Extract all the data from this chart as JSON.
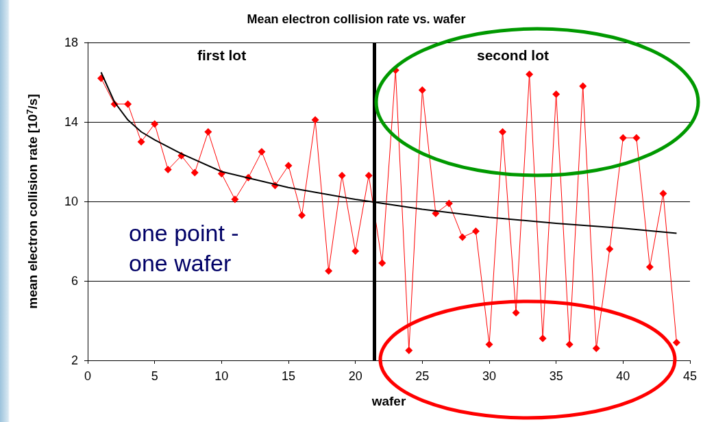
{
  "chart_data": {
    "type": "line",
    "title": "Mean electron collision rate vs. wafer",
    "xlabel": "wafer",
    "ylabel": "mean electron collision rate [10$^{7}$/s]",
    "xlim": [
      0,
      45
    ],
    "xticks": [
      0,
      5,
      10,
      15,
      20,
      25,
      30,
      35,
      40,
      45
    ],
    "ylim": [
      2,
      18
    ],
    "yticks": [
      2,
      6,
      10,
      14,
      18
    ],
    "grid": "y",
    "marker": "diamond",
    "series": [
      {
        "color": "#ff0000",
        "x": [
          1,
          2,
          3,
          4,
          5,
          6,
          7,
          8,
          9,
          10,
          11,
          12,
          13,
          14,
          15,
          16,
          17,
          18,
          19,
          20,
          21,
          22,
          23,
          24,
          25,
          26,
          27,
          28,
          29,
          30,
          31,
          32,
          33,
          34,
          35,
          36,
          37,
          38,
          39,
          40,
          41,
          42,
          43,
          44
        ],
        "values": [
          16.2,
          14.9,
          14.9,
          13.0,
          13.9,
          11.6,
          12.3,
          11.45,
          13.5,
          11.4,
          10.1,
          11.2,
          12.5,
          10.8,
          11.8,
          9.3,
          14.1,
          6.5,
          11.3,
          7.5,
          11.3,
          6.9,
          16.6,
          2.5,
          15.6,
          9.4,
          9.9,
          8.2,
          8.5,
          2.8,
          13.5,
          4.4,
          16.4,
          3.1,
          15.4,
          2.8,
          15.8,
          2.6,
          7.6,
          13.2,
          13.2,
          6.7,
          10.4,
          2.9
        ]
      },
      {
        "color": "#000000",
        "marker": "none",
        "x": [
          1,
          2,
          3,
          4,
          5,
          7,
          10,
          15,
          20,
          25,
          30,
          35,
          40,
          44
        ],
        "values": [
          16.5,
          15.0,
          14.1,
          13.5,
          13.1,
          12.4,
          11.5,
          10.7,
          10.1,
          9.6,
          9.2,
          8.9,
          8.65,
          8.4
        ]
      }
    ],
    "ref_lines": [
      {
        "axis": "x",
        "value": 21.4,
        "color": "#000000"
      }
    ],
    "annotations": [
      "first lot",
      "second lot",
      "one point - one wafer"
    ]
  }
}
